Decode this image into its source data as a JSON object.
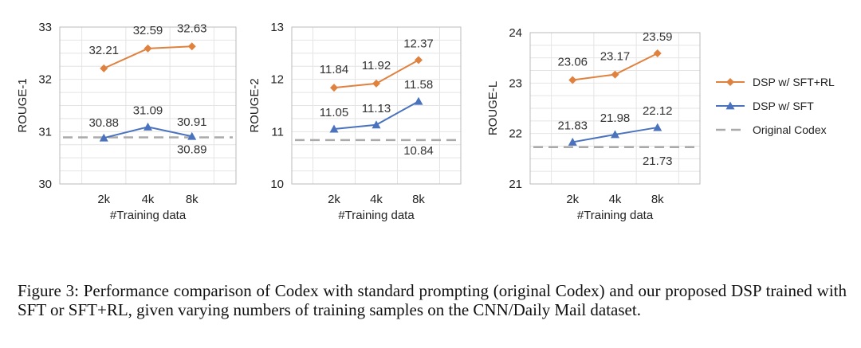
{
  "chart_data": [
    {
      "type": "line",
      "xlabel": "#Training data",
      "ylabel": "ROUGE-1",
      "categories": [
        "2k",
        "4k",
        "8k"
      ],
      "ylim": [
        30,
        33
      ],
      "yticks": [
        "30",
        "31",
        "32",
        "33"
      ],
      "grid": true,
      "series": [
        {
          "name": "DSP w/ SFT+RL",
          "values": [
            32.21,
            32.59,
            32.63
          ],
          "labels": [
            "32.21",
            "32.59",
            "32.63"
          ]
        },
        {
          "name": "DSP w/ SFT",
          "values": [
            30.88,
            31.09,
            30.91
          ],
          "labels": [
            "30.88",
            "31.09",
            "30.91"
          ]
        }
      ],
      "baseline": {
        "name": "Original Codex",
        "value": 30.89,
        "label": "30.89"
      }
    },
    {
      "type": "line",
      "xlabel": "#Training data",
      "ylabel": "ROUGE-2",
      "categories": [
        "2k",
        "4k",
        "8k"
      ],
      "ylim": [
        10,
        13
      ],
      "yticks": [
        "10",
        "11",
        "12",
        "13"
      ],
      "grid": true,
      "series": [
        {
          "name": "DSP w/ SFT+RL",
          "values": [
            11.84,
            11.92,
            12.37
          ],
          "labels": [
            "11.84",
            "11.92",
            "12.37"
          ]
        },
        {
          "name": "DSP w/ SFT",
          "values": [
            11.05,
            11.13,
            11.58
          ],
          "labels": [
            "11.05",
            "11.13",
            "11.58"
          ]
        }
      ],
      "baseline": {
        "name": "Original Codex",
        "value": 10.84,
        "label": "10.84"
      }
    },
    {
      "type": "line",
      "xlabel": "#Training data",
      "ylabel": "ROUGE-L",
      "categories": [
        "2k",
        "4k",
        "8k"
      ],
      "ylim": [
        21,
        24
      ],
      "yticks": [
        "21",
        "22",
        "23",
        "24"
      ],
      "grid": true,
      "series": [
        {
          "name": "DSP w/ SFT+RL",
          "values": [
            23.06,
            23.17,
            23.59
          ],
          "labels": [
            "23.06",
            "23.17",
            "23.59"
          ]
        },
        {
          "name": "DSP w/ SFT",
          "values": [
            21.83,
            21.98,
            22.12
          ],
          "labels": [
            "21.83",
            "21.98",
            "22.12"
          ]
        }
      ],
      "baseline": {
        "name": "Original Codex",
        "value": 21.73,
        "label": "21.73"
      }
    }
  ],
  "legend": {
    "position": "right",
    "entries": [
      {
        "name": "DSP w/ SFT+RL",
        "marker": "diamond",
        "style": "solid",
        "color": "#E0823F"
      },
      {
        "name": "DSP w/ SFT",
        "marker": "triangle",
        "style": "solid",
        "color": "#4A72BD"
      },
      {
        "name": "Original Codex",
        "marker": "none",
        "style": "dashed",
        "color": "#AAAAAA"
      }
    ]
  },
  "colors": {
    "sftrl": "#E0823F",
    "sft": "#4A72BD",
    "baseline": "#AAAAAA",
    "grid": "#E4E4E4",
    "frame": "#BBBBBB"
  },
  "caption": "Figure 3: Performance comparison of Codex with standard prompting (original Codex) and our proposed DSP trained with SFT or SFT+RL, given varying numbers of training samples on the CNN/Daily Mail dataset."
}
